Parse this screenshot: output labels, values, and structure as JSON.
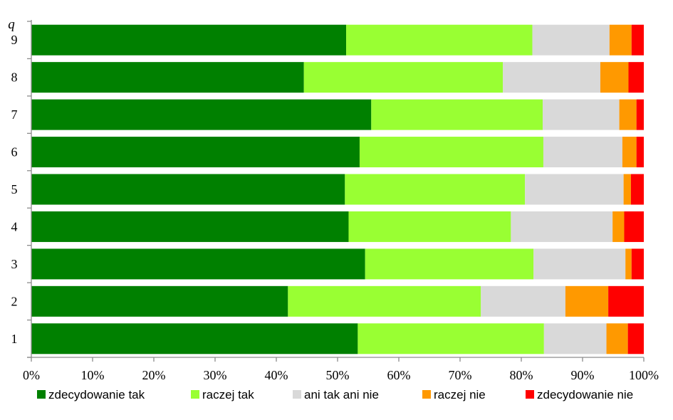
{
  "chart_data": {
    "type": "bar",
    "orientation": "horizontal",
    "stacked": "percent",
    "title": "",
    "ylabel": "q",
    "xlabel": "",
    "categories": [
      "1",
      "2",
      "3",
      "4",
      "5",
      "6",
      "7",
      "8",
      "9"
    ],
    "x_ticks": [
      "0%",
      "10%",
      "20%",
      "30%",
      "40%",
      "50%",
      "60%",
      "70%",
      "80%",
      "90%",
      "100%"
    ],
    "xlim": [
      0,
      100
    ],
    "grid": false,
    "legend_position": "bottom",
    "series": [
      {
        "name": "zdecydowanie tak",
        "color": "#008000",
        "values": [
          53.3,
          41.9,
          54.5,
          51.8,
          51.2,
          53.6,
          55.5,
          44.5,
          51.4
        ]
      },
      {
        "name": "raczej tak",
        "color": "#99ff33",
        "values": [
          30.4,
          31.5,
          27.5,
          26.5,
          29.4,
          30.0,
          28.0,
          32.5,
          30.4
        ]
      },
      {
        "name": "ani tak ani nie",
        "color": "#d9d9d9",
        "values": [
          10.2,
          13.8,
          15.0,
          16.6,
          16.1,
          12.9,
          12.5,
          15.9,
          12.6
        ]
      },
      {
        "name": "raczej nie",
        "color": "#ff9900",
        "values": [
          3.5,
          7.0,
          1.0,
          1.9,
          1.2,
          2.3,
          2.8,
          4.6,
          3.6
        ]
      },
      {
        "name": "zdecydowanie nie",
        "color": "#ff0000",
        "values": [
          2.6,
          5.8,
          2.0,
          3.2,
          2.1,
          1.2,
          1.2,
          2.5,
          2.0
        ]
      }
    ]
  }
}
